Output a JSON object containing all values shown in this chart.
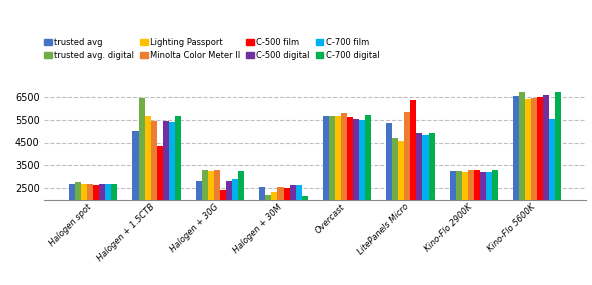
{
  "categories": [
    "Halogen spot",
    "Halogen + 1.5CTB",
    "Halogen + 30G",
    "Halogen + 30M",
    "Overcast",
    "LitePanels Micro",
    "Kino-Flo 2900K",
    "Kino-Flo 5600K"
  ],
  "series": [
    {
      "label": "trusted avg",
      "color": "#4472c4",
      "values": [
        2700,
        5000,
        2800,
        2550,
        5650,
        5350,
        3250,
        6550
      ]
    },
    {
      "label": "trusted avg. digital",
      "color": "#70ad47",
      "values": [
        2750,
        6450,
        3300,
        2200,
        5650,
        4700,
        3250,
        6700
      ]
    },
    {
      "label": "Lighting Passport",
      "color": "#ffc000",
      "values": [
        2700,
        5650,
        3250,
        2350,
        5650,
        4550,
        3200,
        6400
      ]
    },
    {
      "label": "Minolta Color Meter II",
      "color": "#ed7d31",
      "values": [
        2700,
        5450,
        3300,
        2550,
        5800,
        5850,
        3300,
        6450
      ]
    },
    {
      "label": "C-500 film",
      "color": "#ff0000",
      "values": [
        2650,
        4350,
        2400,
        2500,
        5600,
        6350,
        3300,
        6500
      ]
    },
    {
      "label": "C-500 digital",
      "color": "#7030a0",
      "values": [
        2700,
        5450,
        2800,
        2650,
        5550,
        4900,
        3200,
        6600
      ]
    },
    {
      "label": "C-700 film",
      "color": "#00b0f0",
      "values": [
        2700,
        5400,
        2900,
        2650,
        5500,
        4850,
        3200,
        5550
      ]
    },
    {
      "label": "C-700 digital",
      "color": "#00b050",
      "values": [
        2700,
        5650,
        3250,
        2150,
        5700,
        4900,
        3300,
        6700
      ]
    }
  ],
  "ylim": [
    2000,
    7000
  ],
  "yticks": [
    2500,
    3500,
    4500,
    5500,
    6500
  ],
  "background_color": "#ffffff",
  "grid_color": "#c0c0c0",
  "bar_width": 0.095,
  "figsize": [
    5.92,
    2.85
  ],
  "dpi": 100
}
